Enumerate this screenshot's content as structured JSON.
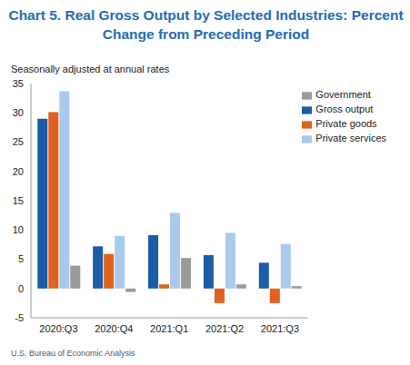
{
  "chart_data": {
    "type": "bar",
    "title": "Chart 5. Real Gross Output by Selected Industries: Percent Change from Preceding Period",
    "subtitle": "Seasonally adjusted at annual rates",
    "source": "U.S. Bureau of Economic Analysis",
    "categories": [
      "2020:Q3",
      "2020:Q4",
      "2021:Q1",
      "2021:Q2",
      "2021:Q3"
    ],
    "series": [
      {
        "name": "Gross output",
        "color": "#1c5ba5",
        "values": [
          29.0,
          7.2,
          9.1,
          5.7,
          4.4
        ]
      },
      {
        "name": "Private goods",
        "color": "#e0621c",
        "values": [
          30.1,
          5.9,
          0.7,
          -2.5,
          -2.5
        ]
      },
      {
        "name": "Private services",
        "color": "#a7c9ec",
        "values": [
          33.7,
          9.0,
          12.9,
          9.5,
          7.6
        ]
      },
      {
        "name": "Government",
        "color": "#9a9a9a",
        "values": [
          3.9,
          -0.6,
          5.2,
          0.7,
          0.4
        ]
      }
    ],
    "ylim": [
      -5,
      35
    ],
    "yticks": [
      -5,
      0,
      5,
      10,
      15,
      20,
      25,
      30,
      35
    ],
    "grid": false,
    "legend": "top-right"
  }
}
